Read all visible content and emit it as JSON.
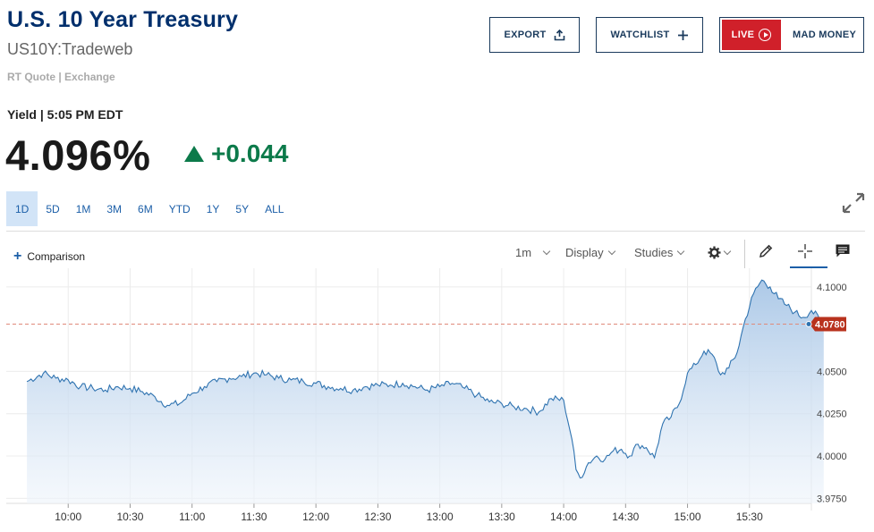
{
  "header": {
    "title": "U.S. 10 Year Treasury",
    "symbol": "US10Y:Tradeweb",
    "quote_source": "RT Quote | Exchange",
    "yield_time": "Yield | 5:05 PM EDT",
    "price": "4.096%",
    "change": "+0.044"
  },
  "buttons": {
    "export": "EXPORT",
    "watchlist": "WATCHLIST",
    "live": "LIVE",
    "mad_money": "MAD MONEY"
  },
  "ranges": [
    "1D",
    "5D",
    "1M",
    "3M",
    "6M",
    "YTD",
    "1Y",
    "5Y",
    "ALL"
  ],
  "toolbar": {
    "comparison": "Comparison",
    "interval": "1m",
    "display": "Display",
    "studies": "Studies"
  },
  "colors": {
    "brand": "#002f6c",
    "positive": "#0c7a4a",
    "line": "#2f73b0",
    "last_marker": "#b8321d"
  },
  "chart_data": {
    "type": "area",
    "x_ticks": [
      "10:00",
      "10:30",
      "11:00",
      "11:30",
      "12:00",
      "12:30",
      "13:00",
      "13:30",
      "14:00",
      "14:30",
      "15:00",
      "15:30"
    ],
    "y_ticks": [
      "4.1000",
      "4.0500",
      "4.0250",
      "4.0000",
      "3.9750"
    ],
    "ylim": [
      3.972,
      4.111
    ],
    "x_range": [
      "09:30",
      "16:00"
    ],
    "last_value": "4.0780",
    "last_value_num": 4.078,
    "x_minutes": [
      -20,
      -12,
      -6,
      0,
      6,
      12,
      18,
      24,
      30,
      36,
      42,
      48,
      54,
      60,
      66,
      72,
      78,
      84,
      90,
      96,
      102,
      108,
      114,
      120,
      126,
      132,
      138,
      144,
      150,
      156,
      162,
      168,
      174,
      180,
      186,
      192,
      198,
      204,
      210,
      216,
      222,
      228,
      234,
      240,
      244,
      246,
      248,
      252,
      256,
      260,
      264,
      268,
      272,
      276,
      280,
      284,
      288,
      292,
      296,
      300,
      304,
      308,
      312,
      316,
      320,
      324,
      328,
      332,
      336,
      340,
      344,
      348,
      352,
      356,
      360,
      364,
      366
    ],
    "values": [
      4.044,
      4.049,
      4.046,
      4.045,
      4.041,
      4.04,
      4.039,
      4.041,
      4.04,
      4.038,
      4.035,
      4.03,
      4.031,
      4.037,
      4.041,
      4.044,
      4.046,
      4.047,
      4.049,
      4.048,
      4.046,
      4.045,
      4.044,
      4.043,
      4.041,
      4.04,
      4.039,
      4.041,
      4.042,
      4.042,
      4.043,
      4.041,
      4.039,
      4.041,
      4.043,
      4.04,
      4.036,
      4.032,
      4.031,
      4.029,
      4.028,
      4.026,
      4.034,
      4.033,
      4.01,
      3.992,
      3.987,
      3.996,
      4.0,
      3.998,
      4.003,
      4.004,
      4.0,
      4.007,
      4.005,
      3.999,
      4.019,
      4.023,
      4.031,
      4.049,
      4.054,
      4.062,
      4.06,
      4.048,
      4.052,
      4.061,
      4.081,
      4.096,
      4.104,
      4.1,
      4.093,
      4.089,
      4.085,
      4.082,
      4.086,
      4.081,
      4.078
    ]
  }
}
